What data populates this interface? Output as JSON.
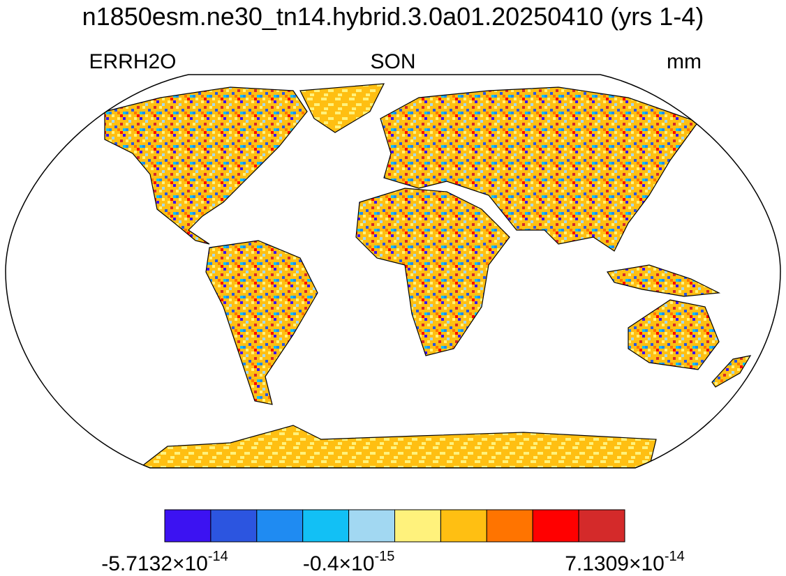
{
  "title": "n1850esm.ne30_tn14.hybrid.3.0a01.20250410 (yrs 1-4)",
  "left_label": "ERRH2O",
  "center_label": "SON",
  "right_label": "mm",
  "colorbar": {
    "colors": [
      "#3c12f2",
      "#2c55e0",
      "#1f8bf2",
      "#12c0f5",
      "#a2d8f2",
      "#fff27c",
      "#ffbf12",
      "#ff7400",
      "#ff0000",
      "#d42a2a"
    ],
    "labels": [
      {
        "text": "-5.7132×10",
        "exponent": "-14"
      },
      {
        "text": "-0.4×10",
        "exponent": "-15"
      },
      {
        "text": "7.1309×10",
        "exponent": "-14"
      }
    ]
  }
}
